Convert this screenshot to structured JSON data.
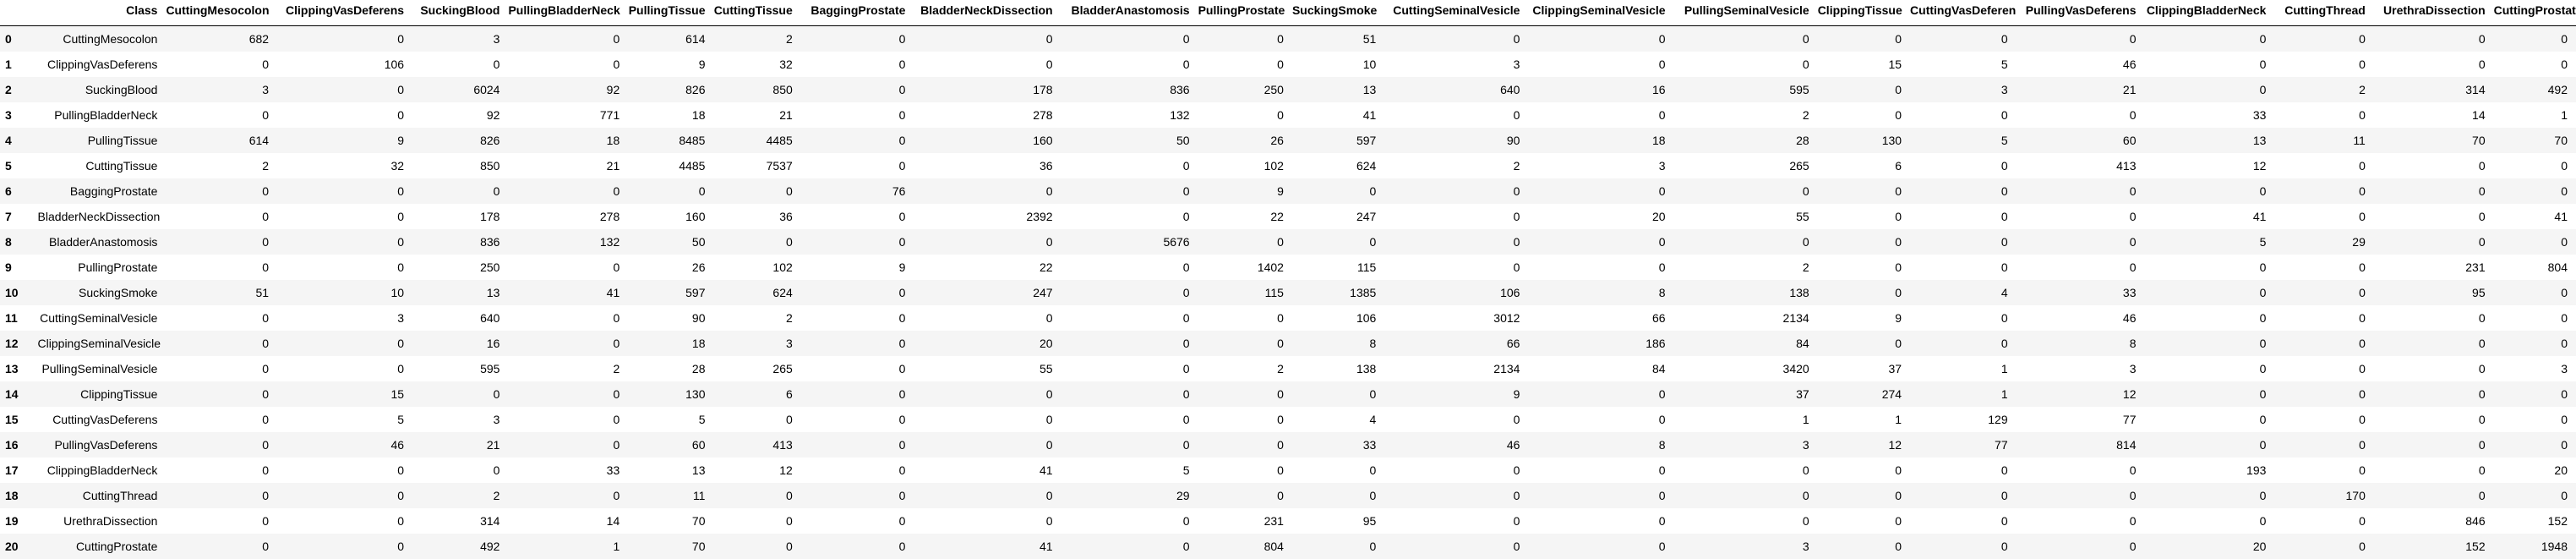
{
  "table": {
    "index_header": "",
    "columns": [
      "Class",
      "CuttingMesocolon",
      "ClippingVasDeferens",
      "SuckingBlood",
      "PullingBladderNeck",
      "PullingTissue",
      "CuttingTissue",
      "BaggingProstate",
      "BladderNeckDissection",
      "BladderAnastomosis",
      "PullingProstate",
      "SuckingSmoke",
      "CuttingSeminalVesicle",
      "ClippingSeminalVesicle",
      "PullingSeminalVesicle",
      "ClippingTissue",
      "CuttingVasDeferens",
      "PullingVasDeferens",
      "ClippingBladderNeck",
      "CuttingThread",
      "UrethraDissection",
      "CuttingProstate"
    ],
    "rows": [
      {
        "index": "0",
        "cells": [
          "CuttingMesocolon",
          "682",
          "0",
          "3",
          "0",
          "614",
          "2",
          "0",
          "0",
          "0",
          "0",
          "51",
          "0",
          "0",
          "0",
          "0",
          "0",
          "0",
          "0",
          "0",
          "0",
          "0"
        ]
      },
      {
        "index": "1",
        "cells": [
          "ClippingVasDeferens",
          "0",
          "106",
          "0",
          "0",
          "9",
          "32",
          "0",
          "0",
          "0",
          "0",
          "10",
          "3",
          "0",
          "0",
          "15",
          "5",
          "46",
          "0",
          "0",
          "0",
          "0"
        ]
      },
      {
        "index": "2",
        "cells": [
          "SuckingBlood",
          "3",
          "0",
          "6024",
          "92",
          "826",
          "850",
          "0",
          "178",
          "836",
          "250",
          "13",
          "640",
          "16",
          "595",
          "0",
          "3",
          "21",
          "0",
          "2",
          "314",
          "492"
        ]
      },
      {
        "index": "3",
        "cells": [
          "PullingBladderNeck",
          "0",
          "0",
          "92",
          "771",
          "18",
          "21",
          "0",
          "278",
          "132",
          "0",
          "41",
          "0",
          "0",
          "2",
          "0",
          "0",
          "0",
          "33",
          "0",
          "14",
          "1"
        ]
      },
      {
        "index": "4",
        "cells": [
          "PullingTissue",
          "614",
          "9",
          "826",
          "18",
          "8485",
          "4485",
          "0",
          "160",
          "50",
          "26",
          "597",
          "90",
          "18",
          "28",
          "130",
          "5",
          "60",
          "13",
          "11",
          "70",
          "70"
        ]
      },
      {
        "index": "5",
        "cells": [
          "CuttingTissue",
          "2",
          "32",
          "850",
          "21",
          "4485",
          "7537",
          "0",
          "36",
          "0",
          "102",
          "624",
          "2",
          "3",
          "265",
          "6",
          "0",
          "413",
          "12",
          "0",
          "0",
          "0"
        ]
      },
      {
        "index": "6",
        "cells": [
          "BaggingProstate",
          "0",
          "0",
          "0",
          "0",
          "0",
          "0",
          "76",
          "0",
          "0",
          "9",
          "0",
          "0",
          "0",
          "0",
          "0",
          "0",
          "0",
          "0",
          "0",
          "0",
          "0"
        ]
      },
      {
        "index": "7",
        "cells": [
          "BladderNeckDissection",
          "0",
          "0",
          "178",
          "278",
          "160",
          "36",
          "0",
          "2392",
          "0",
          "22",
          "247",
          "0",
          "20",
          "55",
          "0",
          "0",
          "0",
          "41",
          "0",
          "0",
          "41"
        ]
      },
      {
        "index": "8",
        "cells": [
          "BladderAnastomosis",
          "0",
          "0",
          "836",
          "132",
          "50",
          "0",
          "0",
          "0",
          "5676",
          "0",
          "0",
          "0",
          "0",
          "0",
          "0",
          "0",
          "0",
          "5",
          "29",
          "0",
          "0"
        ]
      },
      {
        "index": "9",
        "cells": [
          "PullingProstate",
          "0",
          "0",
          "250",
          "0",
          "26",
          "102",
          "9",
          "22",
          "0",
          "1402",
          "115",
          "0",
          "0",
          "2",
          "0",
          "0",
          "0",
          "0",
          "0",
          "231",
          "804"
        ]
      },
      {
        "index": "10",
        "cells": [
          "SuckingSmoke",
          "51",
          "10",
          "13",
          "41",
          "597",
          "624",
          "0",
          "247",
          "0",
          "115",
          "1385",
          "106",
          "8",
          "138",
          "0",
          "4",
          "33",
          "0",
          "0",
          "95",
          "0"
        ]
      },
      {
        "index": "11",
        "cells": [
          "CuttingSeminalVesicle",
          "0",
          "3",
          "640",
          "0",
          "90",
          "2",
          "0",
          "0",
          "0",
          "0",
          "106",
          "3012",
          "66",
          "2134",
          "9",
          "0",
          "46",
          "0",
          "0",
          "0",
          "0"
        ]
      },
      {
        "index": "12",
        "cells": [
          "ClippingSeminalVesicle",
          "0",
          "0",
          "16",
          "0",
          "18",
          "3",
          "0",
          "20",
          "0",
          "0",
          "8",
          "66",
          "186",
          "84",
          "0",
          "0",
          "8",
          "0",
          "0",
          "0",
          "0"
        ]
      },
      {
        "index": "13",
        "cells": [
          "PullingSeminalVesicle",
          "0",
          "0",
          "595",
          "2",
          "28",
          "265",
          "0",
          "55",
          "0",
          "2",
          "138",
          "2134",
          "84",
          "3420",
          "37",
          "1",
          "3",
          "0",
          "0",
          "0",
          "3"
        ]
      },
      {
        "index": "14",
        "cells": [
          "ClippingTissue",
          "0",
          "15",
          "0",
          "0",
          "130",
          "6",
          "0",
          "0",
          "0",
          "0",
          "0",
          "9",
          "0",
          "37",
          "274",
          "1",
          "12",
          "0",
          "0",
          "0",
          "0"
        ]
      },
      {
        "index": "15",
        "cells": [
          "CuttingVasDeferens",
          "0",
          "5",
          "3",
          "0",
          "5",
          "0",
          "0",
          "0",
          "0",
          "0",
          "4",
          "0",
          "0",
          "1",
          "1",
          "129",
          "77",
          "0",
          "0",
          "0",
          "0"
        ]
      },
      {
        "index": "16",
        "cells": [
          "PullingVasDeferens",
          "0",
          "46",
          "21",
          "0",
          "60",
          "413",
          "0",
          "0",
          "0",
          "0",
          "33",
          "46",
          "8",
          "3",
          "12",
          "77",
          "814",
          "0",
          "0",
          "0",
          "0"
        ]
      },
      {
        "index": "17",
        "cells": [
          "ClippingBladderNeck",
          "0",
          "0",
          "0",
          "33",
          "13",
          "12",
          "0",
          "41",
          "5",
          "0",
          "0",
          "0",
          "0",
          "0",
          "0",
          "0",
          "0",
          "193",
          "0",
          "0",
          "20"
        ]
      },
      {
        "index": "18",
        "cells": [
          "CuttingThread",
          "0",
          "0",
          "2",
          "0",
          "11",
          "0",
          "0",
          "0",
          "29",
          "0",
          "0",
          "0",
          "0",
          "0",
          "0",
          "0",
          "0",
          "0",
          "170",
          "0",
          "0"
        ]
      },
      {
        "index": "19",
        "cells": [
          "UrethraDissection",
          "0",
          "0",
          "314",
          "14",
          "70",
          "0",
          "0",
          "0",
          "0",
          "231",
          "95",
          "0",
          "0",
          "0",
          "0",
          "0",
          "0",
          "0",
          "0",
          "846",
          "152"
        ]
      },
      {
        "index": "20",
        "cells": [
          "CuttingProstate",
          "0",
          "0",
          "492",
          "1",
          "70",
          "0",
          "0",
          "41",
          "0",
          "804",
          "0",
          "0",
          "0",
          "3",
          "0",
          "0",
          "0",
          "20",
          "0",
          "152",
          "1948"
        ]
      }
    ]
  }
}
